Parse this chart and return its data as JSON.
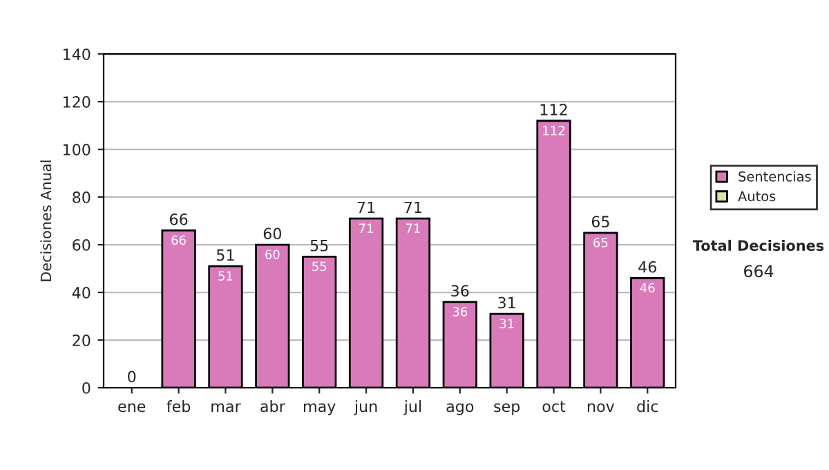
{
  "chart_data": {
    "type": "bar",
    "stacked": true,
    "ylabel": "Decisiones Anual",
    "categories": [
      "ene",
      "feb",
      "mar",
      "abr",
      "may",
      "jun",
      "jul",
      "ago",
      "sep",
      "oct",
      "nov",
      "dic"
    ],
    "series": [
      {
        "name": "Sentencias",
        "color": "#d97bbb",
        "values": [
          0,
          66,
          51,
          60,
          55,
          71,
          71,
          36,
          31,
          112,
          65,
          46
        ],
        "value_labels": [
          null,
          "66",
          "51",
          "60",
          "55",
          "71",
          "71",
          "36",
          "31",
          "112",
          "65",
          "46"
        ]
      },
      {
        "name": "Autos",
        "color": "#d4e8a0",
        "values": [
          0,
          0,
          0,
          0,
          0,
          0,
          0,
          0,
          0,
          0,
          0,
          0
        ]
      }
    ],
    "totals": [
      "0",
      "66",
      "51",
      "60",
      "55",
      "71",
      "71",
      "36",
      "31",
      "112",
      "65",
      "46"
    ],
    "ylim": [
      0,
      140
    ],
    "yticks": [
      0,
      20,
      40,
      60,
      80,
      100,
      120,
      140
    ],
    "grid": "y",
    "legend": "right",
    "annotations": [
      "Total Decisiones",
      "664"
    ]
  }
}
